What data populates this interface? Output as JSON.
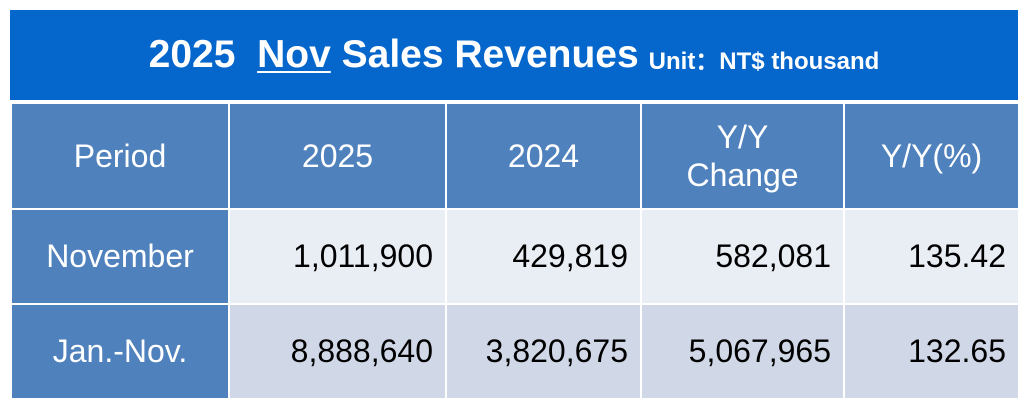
{
  "title": {
    "year": "2025",
    "month": "Nov",
    "text": "Sales Revenues",
    "unit": "Unit：NT$ thousand"
  },
  "table": {
    "headers": [
      "Period",
      "2025",
      "2024",
      "Y/Y Change",
      "Y/Y(%)"
    ],
    "rows": [
      {
        "period": "November",
        "y2025": "1,011,900",
        "y2024": "429,819",
        "change": "582,081",
        "pct": "135.42"
      },
      {
        "period": "Jan.-Nov.",
        "y2025": "8,888,640",
        "y2024": "3,820,675",
        "change": "5,067,965",
        "pct": "132.65"
      }
    ]
  },
  "colors": {
    "title_bg": "#0566CC",
    "header_bg": "#4F81BD",
    "row1_bg": "#E9EDF4",
    "row2_bg": "#D0D8E8"
  }
}
